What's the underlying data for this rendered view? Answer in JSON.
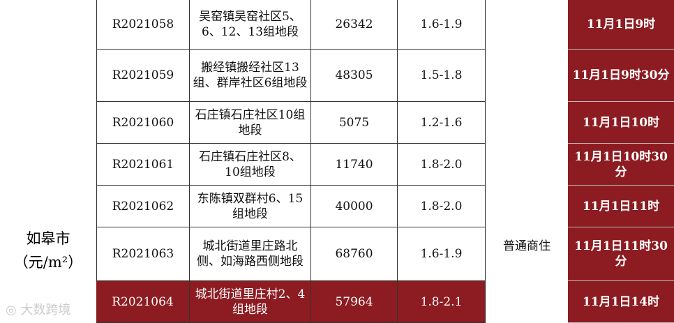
{
  "region": {
    "city": "如皋市",
    "unit": "（元/m²）"
  },
  "usage": "普通商住",
  "table": {
    "rows": [
      [
        "R2021058",
        "吴窑镇吴窑社区5、6、12、13组地段",
        26342,
        "1.6-1.9",
        "11月1日9时"
      ],
      [
        "R2021059",
        "搬经镇搬经社区13组、群岸社区6组地段",
        48305,
        "1.5-1.8",
        "11月1日9时30分"
      ],
      [
        "R2021060",
        "石庄镇石庄社区10组地段",
        5075,
        "1.2-1.6",
        "11月1日10时"
      ],
      [
        "R2021061",
        "石庄镇石庄社区8、10组地段",
        11740,
        "1.8-2.0",
        "11月1日10时30分"
      ],
      [
        "R2021062",
        "东陈镇双群村6、15组地段",
        40000,
        "1.8-2.0",
        "11月1日11时"
      ],
      [
        "R2021063",
        "城北街道里庄路北侧、如海路西侧地段",
        68760,
        "1.6-1.9",
        "11月1日11时30分"
      ],
      [
        "R2021064",
        "城北街道里庄村2、4组地段",
        57964,
        "1.8-2.1",
        "11月1日14时"
      ]
    ]
  },
  "watermark": "大数跨境"
}
